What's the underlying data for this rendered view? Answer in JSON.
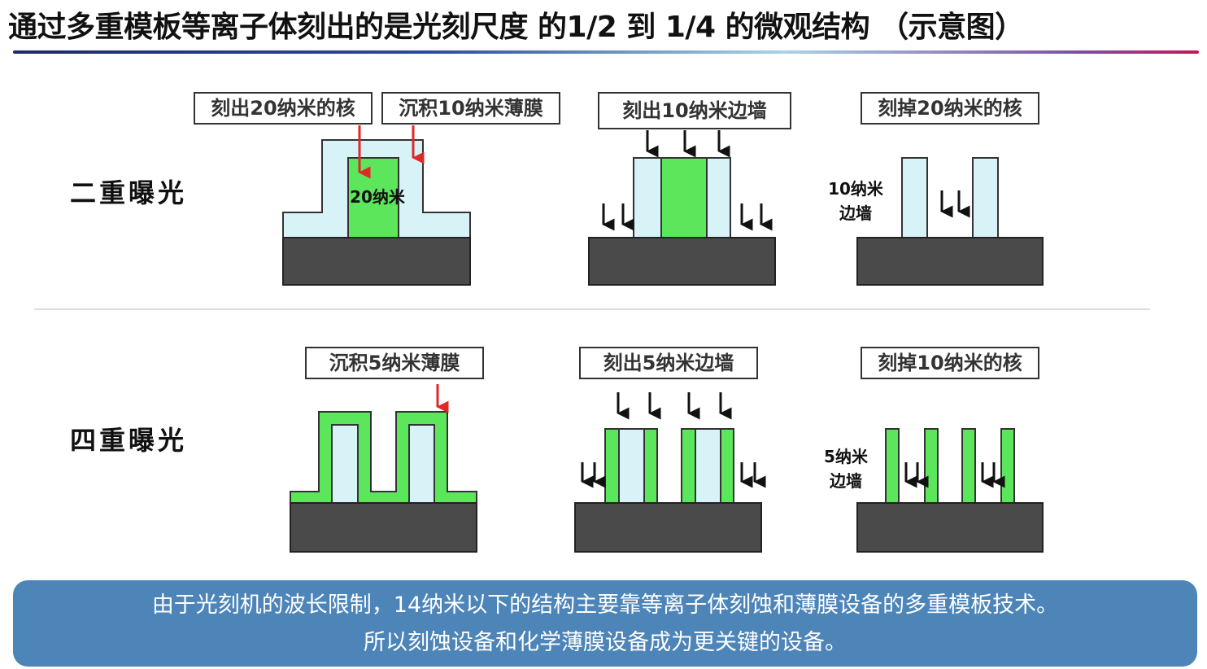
{
  "title": "通过多重模板等离子体刻出的是光刻尺度 的1/2 到 1/4 的微观结构 （示意图）",
  "rows": {
    "double": {
      "label": "二重曝光"
    },
    "quad": {
      "label": "四重曝光"
    }
  },
  "steps": {
    "d1a": "刻出20纳米的核",
    "d1b": "沉积10纳米薄膜",
    "d2": "刻出10纳米边墙",
    "d3": "刻掉20纳米的核",
    "q1": "沉积5纳米薄膜",
    "q2": "刻出5纳米边墙",
    "q3": "刻掉10纳米的核"
  },
  "annotations": {
    "core_width": "20纳米",
    "wall10_a": "10纳米",
    "wall10_b": "边墙",
    "wall5_a": "5纳米",
    "wall5_b": "边墙"
  },
  "colors": {
    "substrate": "#4a4a4a",
    "film": "#d7f3f7",
    "core": "#5ce65c",
    "red_arrow": "#e02828",
    "footer_bg": "#4d85b8"
  },
  "footer": {
    "line1": "由于光刻机的波长限制，14纳米以下的结构主要靠等离子体刻蚀和薄膜设备的多重模板技术。",
    "line2": "所以刻蚀设备和化学薄膜设备成为更关键的设备。"
  }
}
